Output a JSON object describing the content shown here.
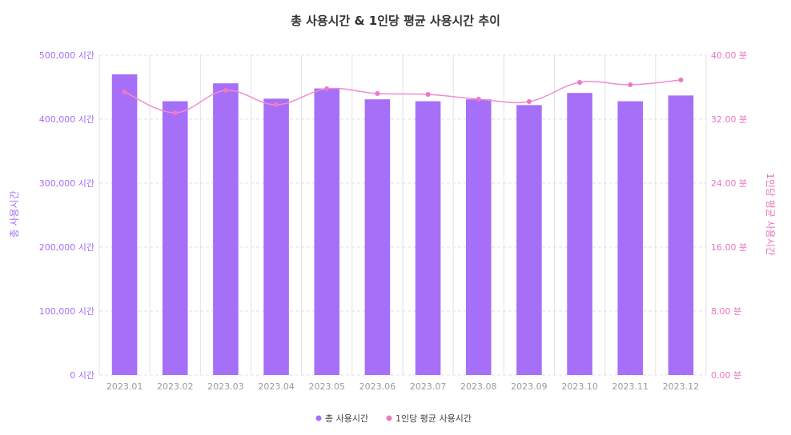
{
  "chart_data": {
    "type": "bar+line",
    "title": "총 사용시간 & 1인당 평균 사용시간 추이",
    "categories": [
      "2023.01",
      "2023.02",
      "2023.03",
      "2023.04",
      "2023.05",
      "2023.06",
      "2023.07",
      "2023.08",
      "2023.09",
      "2023.10",
      "2023.11",
      "2023.12"
    ],
    "series": [
      {
        "name": "총 사용시간",
        "type": "bar",
        "axis": "left",
        "values": [
          470000,
          428000,
          456000,
          432000,
          448000,
          431000,
          428000,
          431000,
          422000,
          441000,
          428000,
          437000
        ]
      },
      {
        "name": "1인당 평균 사용시간",
        "type": "line",
        "axis": "right",
        "values": [
          35.4,
          32.8,
          35.6,
          33.8,
          35.8,
          35.2,
          35.1,
          34.5,
          34.2,
          36.6,
          36.3,
          36.9
        ]
      }
    ],
    "ylabel_left": "총 사용시간",
    "ylabel_right": "1인당 평균 사용시간",
    "ylim_left": [
      0,
      500000
    ],
    "ylim_right": [
      0,
      40
    ],
    "yticks_left": [
      {
        "value": 0,
        "label": "0 시간"
      },
      {
        "value": 100000,
        "label": "100,000 시간"
      },
      {
        "value": 200000,
        "label": "200,000 시간"
      },
      {
        "value": 300000,
        "label": "300,000 시간"
      },
      {
        "value": 400000,
        "label": "400,000 시간"
      },
      {
        "value": 500000,
        "label": "500,000 시간"
      }
    ],
    "yticks_right": [
      {
        "value": 0,
        "label": "0.00 분"
      },
      {
        "value": 8,
        "label": "8.00 분"
      },
      {
        "value": 16,
        "label": "16.00 분"
      },
      {
        "value": 24,
        "label": "24.00 분"
      },
      {
        "value": 32,
        "label": "32.00 분"
      },
      {
        "value": 40,
        "label": "40.00 분"
      }
    ],
    "grid": true,
    "legend_position": "bottom-center",
    "colors": {
      "bar": "#a66ff7",
      "line": "#f08cd0",
      "line_dot": "#ee77c6",
      "left_axis_text": "#a66ff7",
      "right_axis_text": "#e676c0",
      "grid": "#e2e2e2"
    }
  }
}
